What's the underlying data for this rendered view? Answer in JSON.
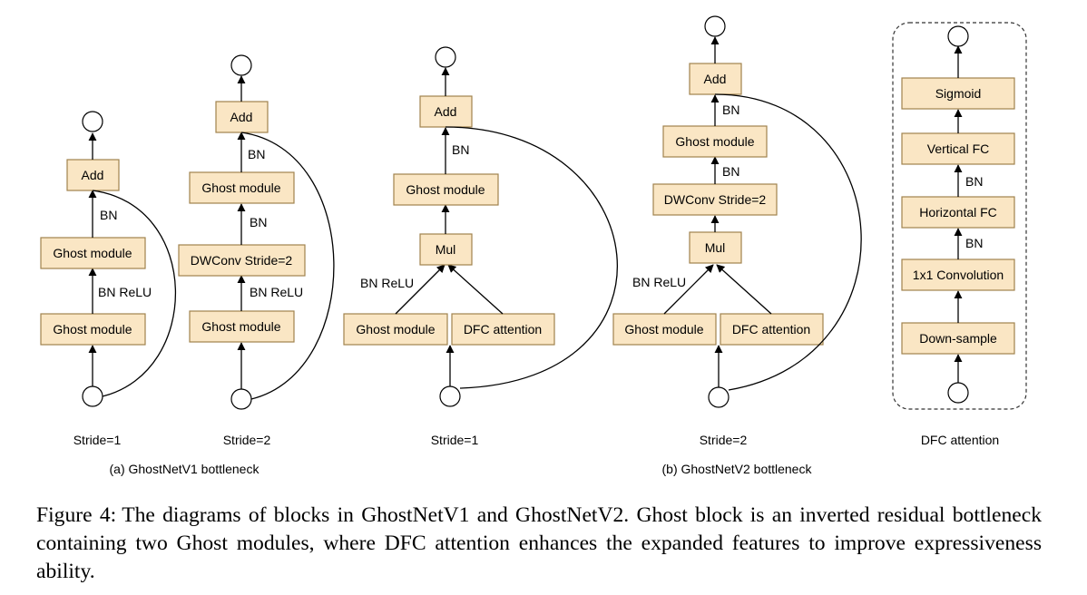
{
  "diagrams": {
    "v1_s1": {
      "label": "Stride=1",
      "boxes": {
        "b1": "Ghost module",
        "b2": "Ghost module",
        "add": "Add"
      },
      "edges": {
        "e1": "BN ReLU",
        "e2": "BN"
      }
    },
    "v1_s2": {
      "label": "Stride=2",
      "boxes": {
        "b1": "Ghost module",
        "b2": "DWConv Stride=2",
        "b3": "Ghost module",
        "add": "Add"
      },
      "edges": {
        "e1": "BN ReLU",
        "e2": "BN",
        "e3": "BN"
      }
    },
    "v1_title": "(a) GhostNetV1 bottleneck",
    "v2_s1": {
      "label": "Stride=1",
      "boxes": {
        "ghost": "Ghost module",
        "dfc": "DFC attention",
        "mul": "Mul",
        "ghost2": "Ghost module",
        "add": "Add"
      },
      "edges": {
        "e1": "BN ReLU",
        "e2": "BN"
      }
    },
    "v2_s2": {
      "label": "Stride=2",
      "boxes": {
        "ghost": "Ghost module",
        "dfc": "DFC attention",
        "mul": "Mul",
        "dw": "DWConv Stride=2",
        "ghost2": "Ghost module",
        "add": "Add"
      },
      "edges": {
        "e1": "BN ReLU",
        "e2": "BN",
        "e3": "BN"
      }
    },
    "v2_title": "(b) GhostNetV2 bottleneck",
    "dfc": {
      "label": "DFC attention",
      "boxes": {
        "down": "Down-sample",
        "conv": "1x1 Convolution",
        "hfc": "Horizontal FC",
        "vfc": "Vertical FC",
        "sig": "Sigmoid"
      },
      "edges": {
        "e1": "BN",
        "e2": "BN"
      }
    }
  },
  "caption": {
    "label": "Figure 4:",
    "text": "The diagrams of blocks in GhostNetV1 and GhostNetV2. Ghost block is an inverted residual bottleneck containing two Ghost modules, where DFC attention enhances the expanded features to improve expressiveness ability."
  }
}
